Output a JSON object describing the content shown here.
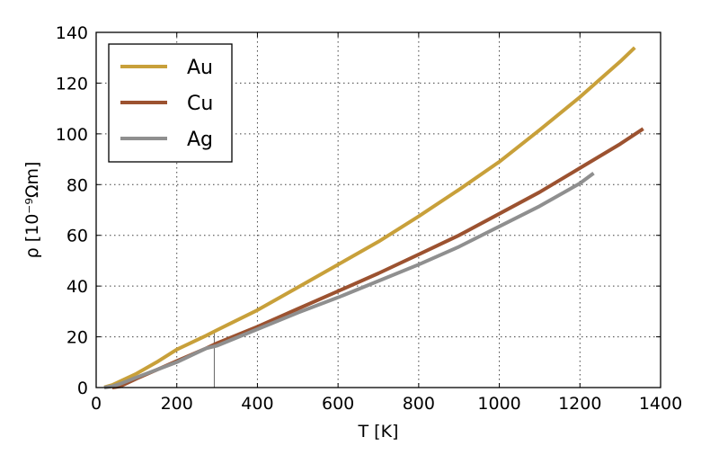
{
  "chart_data": {
    "type": "line",
    "xlabel": "T [K]",
    "ylabel": "ρ [10⁻⁹Ωm]",
    "xlim": [
      0,
      1400
    ],
    "ylim": [
      0,
      140
    ],
    "xticks": [
      0,
      200,
      400,
      600,
      800,
      1000,
      1200,
      1400
    ],
    "yticks": [
      0,
      20,
      40,
      60,
      80,
      100,
      120,
      140
    ],
    "grid": true,
    "legend_position": "top-left",
    "reference_line": {
      "x": 293,
      "y_top": 22
    },
    "series": [
      {
        "name": "Au",
        "color": "#c8a03a",
        "x": [
          20,
          40,
          60,
          100,
          150,
          200,
          273,
          300,
          400,
          500,
          600,
          700,
          800,
          900,
          1000,
          1100,
          1200,
          1300,
          1336
        ],
        "y": [
          0.1,
          1.0,
          2.5,
          5.5,
          10.0,
          15.0,
          20.5,
          22.7,
          30.5,
          39.5,
          48.5,
          57.5,
          67.5,
          78.0,
          89.0,
          101.5,
          114.5,
          128.5,
          134.0
        ]
      },
      {
        "name": "Cu",
        "color": "#9c5230",
        "x": [
          40,
          60,
          100,
          150,
          200,
          273,
          300,
          400,
          500,
          600,
          700,
          800,
          900,
          1000,
          1100,
          1200,
          1300,
          1357
        ],
        "y": [
          0.0,
          0.5,
          3.5,
          7.0,
          10.5,
          15.5,
          17.5,
          24.0,
          31.0,
          38.0,
          45.0,
          52.5,
          60.0,
          68.5,
          77.0,
          86.5,
          96.0,
          102.0
        ]
      },
      {
        "name": "Ag",
        "color": "#8f8f8f",
        "x": [
          20,
          40,
          60,
          100,
          150,
          200,
          273,
          300,
          400,
          500,
          600,
          700,
          800,
          900,
          1000,
          1100,
          1200,
          1234
        ],
        "y": [
          0.0,
          0.5,
          1.5,
          4.0,
          7.0,
          10.0,
          15.5,
          16.5,
          23.0,
          29.5,
          35.5,
          42.0,
          48.5,
          55.5,
          63.5,
          71.5,
          80.5,
          84.5
        ]
      }
    ]
  }
}
